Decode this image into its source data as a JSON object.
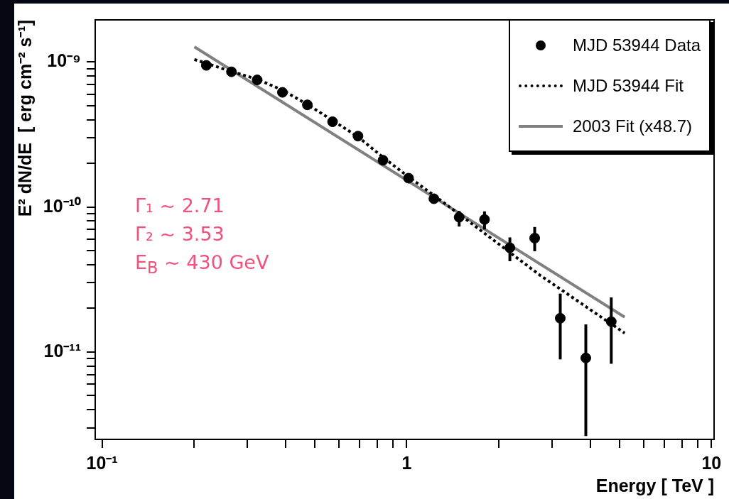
{
  "chart_data": {
    "type": "scatter",
    "xlabel": "Energy [ TeV ]",
    "ylabel": "E² dN/dE  [ erg cm⁻² s⁻¹]",
    "log": "xy",
    "xlim": [
      0.095,
      10.2
    ],
    "ylim": [
      2.5e-12,
      1.95e-09
    ],
    "xticks": [
      {
        "value": 0.1,
        "label": "10⁻¹"
      },
      {
        "value": 0.2,
        "label": null
      },
      {
        "value": 0.3,
        "label": null
      },
      {
        "value": 0.4,
        "label": null
      },
      {
        "value": 0.5,
        "label": null
      },
      {
        "value": 0.6,
        "label": null
      },
      {
        "value": 0.7,
        "label": null
      },
      {
        "value": 0.8,
        "label": null
      },
      {
        "value": 0.9,
        "label": null
      },
      1,
      {
        "value": 2,
        "label": null
      },
      {
        "value": 3,
        "label": null
      },
      {
        "value": 4,
        "label": null
      },
      {
        "value": 5,
        "label": null
      },
      {
        "value": 6,
        "label": null
      },
      {
        "value": 7,
        "label": null
      },
      {
        "value": 8,
        "label": null
      },
      {
        "value": 9,
        "label": null
      },
      10
    ],
    "yticks": [
      {
        "value": 3e-12,
        "label": null
      },
      {
        "value": 4e-12,
        "label": null
      },
      {
        "value": 5e-12,
        "label": null
      },
      {
        "value": 6e-12,
        "label": null
      },
      {
        "value": 7e-12,
        "label": null
      },
      {
        "value": 8e-12,
        "label": null
      },
      {
        "value": 9e-12,
        "label": null
      },
      {
        "value": 1e-11,
        "label": "10⁻¹¹"
      },
      {
        "value": 2e-11,
        "label": null
      },
      {
        "value": 3e-11,
        "label": null
      },
      {
        "value": 4e-11,
        "label": null
      },
      {
        "value": 5e-11,
        "label": null
      },
      {
        "value": 6e-11,
        "label": null
      },
      {
        "value": 7e-11,
        "label": null
      },
      {
        "value": 8e-11,
        "label": null
      },
      {
        "value": 9e-11,
        "label": null
      },
      {
        "value": 1e-10,
        "label": "10⁻¹⁰"
      },
      {
        "value": 2e-10,
        "label": null
      },
      {
        "value": 3e-10,
        "label": null
      },
      {
        "value": 4e-10,
        "label": null
      },
      {
        "value": 5e-10,
        "label": null
      },
      {
        "value": 6e-10,
        "label": null
      },
      {
        "value": 7e-10,
        "label": null
      },
      {
        "value": 8e-10,
        "label": null
      },
      {
        "value": 9e-10,
        "label": null
      },
      {
        "value": 1e-09,
        "label": "10⁻⁹"
      }
    ],
    "legend": "top right",
    "annotations": [
      "Γ₁ ~ 2.71",
      "Γ₂ ~ 3.53",
      "E$_{B}$ ~ 430 GeV"
    ],
    "series": [
      {
        "name": "MJD 53944 Data",
        "marker": "circle",
        "color": "#000000",
        "x": [
          0.22,
          0.266,
          0.323,
          0.391,
          0.472,
          0.571,
          0.692,
          0.836,
          1.014,
          1.228,
          1.486,
          1.8,
          2.18,
          2.63,
          3.19,
          3.87,
          4.69
        ],
        "values": [
          9.47e-10,
          8.55e-10,
          7.52e-10,
          6.17e-10,
          5.06e-10,
          3.87e-10,
          3.08e-10,
          2.1e-10,
          1.58e-10,
          1.14e-10,
          8.5e-11,
          8.2e-11,
          5.24e-11,
          6.1e-11,
          1.71e-11,
          9.1e-12,
          1.62e-11
        ],
        "errors": [
          null,
          null,
          null,
          null,
          null,
          null,
          null,
          null,
          null,
          [
            1.06e-10,
            1.23e-10
          ],
          [
            7.33e-11,
            9.4e-11
          ],
          [
            7e-11,
            9.33e-11
          ],
          [
            4.23e-11,
            6.17e-11
          ],
          [
            4.95e-11,
            7.28e-11
          ],
          [
            8.9e-12,
            2.53e-11
          ],
          [
            2.64e-12,
            1.55e-11
          ],
          [
            8.3e-12,
            2.38e-11
          ]
        ]
      },
      {
        "name": "MJD 53944 Fit",
        "type": "line",
        "marker": "none",
        "line_style": "dotted",
        "color": "#000000",
        "x": [
          0.201,
          0.266,
          0.323,
          0.391,
          0.472,
          0.571,
          0.692,
          0.836,
          1.0,
          1.23,
          1.5,
          2.73,
          5.19
        ],
        "values": [
          1.04e-09,
          8.6e-10,
          7.6e-10,
          6.4e-10,
          5.1e-10,
          3.95e-10,
          3.05e-10,
          2.2e-10,
          1.65e-10,
          1.2e-10,
          8.8e-11,
          3.4e-11,
          1.35e-11
        ]
      },
      {
        "name": "2003 Fit (x48.7)",
        "type": "line",
        "marker": "none",
        "line_style": "solid",
        "color": "#808080",
        "x": [
          0.201,
          5.19
        ],
        "values": [
          1.27e-09,
          1.74e-11
        ]
      }
    ]
  }
}
